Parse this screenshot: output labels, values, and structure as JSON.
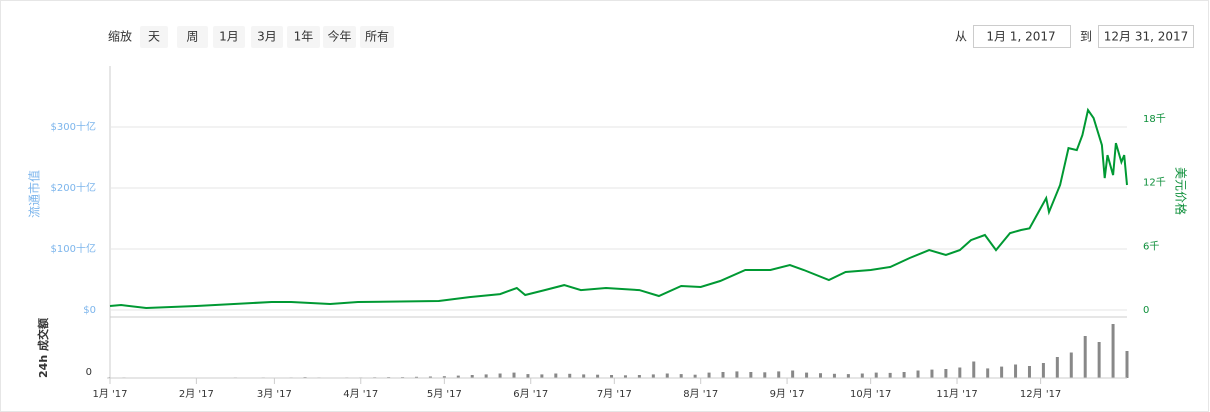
{
  "toolbar": {
    "zoom_label": "缩放",
    "buttons": [
      "天",
      "周",
      "1月",
      "3月",
      "1年",
      "今年",
      "所有"
    ],
    "from_label": "从",
    "from_date": "1月 1, 2017",
    "to_label": "到",
    "to_date": "12月 31, 2017"
  },
  "chart_data": [
    {
      "type": "line",
      "ylabel": "流通市值",
      "y2label": "美元价格",
      "grid": true,
      "xlim": [
        0,
        365
      ],
      "ylim": [
        0,
        400
      ],
      "yticks": [
        {
          "value": 0,
          "label": "$0"
        },
        {
          "value": 100,
          "label": "$100十亿"
        },
        {
          "value": 200,
          "label": "$200十亿"
        },
        {
          "value": 300,
          "label": "$300十亿"
        }
      ],
      "y2lim": [
        0,
        23000
      ],
      "y2ticks": [
        0,
        {
          "value": 6000,
          "label": "6千"
        },
        {
          "value": 12000,
          "label": "12千"
        },
        {
          "value": 18000,
          "label": "18千"
        }
      ],
      "series": [
        {
          "color": "#009933",
          "axis": "y2",
          "x": [
            0,
            4,
            13,
            31,
            58,
            65,
            79,
            89,
            118,
            129,
            140,
            146,
            149,
            156,
            163,
            169,
            178,
            190,
            197,
            205,
            212,
            219,
            228,
            237,
            244,
            249,
            258,
            264,
            273,
            280,
            287,
            294,
            300,
            305,
            309,
            314,
            318,
            323,
            327,
            330,
            336,
            337,
            341,
            344,
            347,
            349,
            351,
            353,
            356,
            357,
            358,
            360,
            361,
            363,
            364,
            365
          ],
          "values": [
            380,
            470,
            190,
            380,
            750,
            750,
            565,
            750,
            850,
            1220,
            1500,
            2070,
            1410,
            1880,
            2350,
            1880,
            2070,
            1880,
            1320,
            2260,
            2170,
            2730,
            3770,
            3770,
            4240,
            3770,
            2830,
            3580,
            3770,
            4050,
            4900,
            5650,
            5180,
            5650,
            6590,
            7070,
            5650,
            7250,
            7540,
            7700,
            10550,
            9230,
            11780,
            15260,
            15070,
            16490,
            18840,
            18090,
            15540,
            12430,
            14600,
            12720,
            15730,
            13940,
            14600,
            11780
          ]
        }
      ]
    },
    {
      "type": "bar",
      "ylabel": "24h 成交额",
      "color": "#888888",
      "xlim": [
        0,
        365
      ],
      "xticks": [
        {
          "value": 0,
          "label": "1月 '17"
        },
        {
          "value": 31,
          "label": "2月 '17"
        },
        {
          "value": 59,
          "label": "3月 '17"
        },
        {
          "value": 90,
          "label": "4月 '17"
        },
        {
          "value": 120,
          "label": "5月 '17"
        },
        {
          "value": 151,
          "label": "6月 '17"
        },
        {
          "value": 181,
          "label": "7月 '17"
        },
        {
          "value": 212,
          "label": "8月 '17"
        },
        {
          "value": 243,
          "label": "9月 '17"
        },
        {
          "value": 273,
          "label": "10月 '17"
        },
        {
          "value": 304,
          "label": "11月 '17"
        },
        {
          "value": 334,
          "label": "12月 '17"
        }
      ],
      "ylim": [
        0,
        20
      ],
      "yticks": [
        0
      ],
      "x": [
        0,
        5,
        10,
        15,
        20,
        25,
        30,
        35,
        40,
        45,
        50,
        55,
        60,
        65,
        70,
        75,
        80,
        85,
        90,
        95,
        100,
        105,
        110,
        115,
        120,
        125,
        130,
        135,
        140,
        145,
        150,
        155,
        160,
        165,
        170,
        175,
        180,
        185,
        190,
        195,
        200,
        205,
        210,
        215,
        220,
        225,
        230,
        235,
        240,
        245,
        250,
        255,
        260,
        265,
        270,
        275,
        280,
        285,
        290,
        295,
        300,
        305,
        310,
        315,
        320,
        325,
        330,
        335,
        340,
        345,
        350,
        355,
        360,
        365
      ],
      "values": [
        0.15,
        0.2,
        0.1,
        0.1,
        0.1,
        0.1,
        0.1,
        0.1,
        0.15,
        0.2,
        0.15,
        0.2,
        0.15,
        0.2,
        0.3,
        0.2,
        0.15,
        0.2,
        0.2,
        0.25,
        0.3,
        0.3,
        0.4,
        0.5,
        0.6,
        0.8,
        1.0,
        1.2,
        1.5,
        1.8,
        1.3,
        1.2,
        1.5,
        1.4,
        1.2,
        1.1,
        1.0,
        0.9,
        1.0,
        1.2,
        1.5,
        1.3,
        1.1,
        1.8,
        2.0,
        2.2,
        2.0,
        1.9,
        2.2,
        2.5,
        1.8,
        1.6,
        1.4,
        1.3,
        1.5,
        1.8,
        1.7,
        2.0,
        2.5,
        2.8,
        3.0,
        3.5,
        5.5,
        3.2,
        3.8,
        4.5,
        4.0,
        5.0,
        7.0,
        8.5,
        14.0,
        12.0,
        18.0,
        9.0
      ]
    }
  ]
}
